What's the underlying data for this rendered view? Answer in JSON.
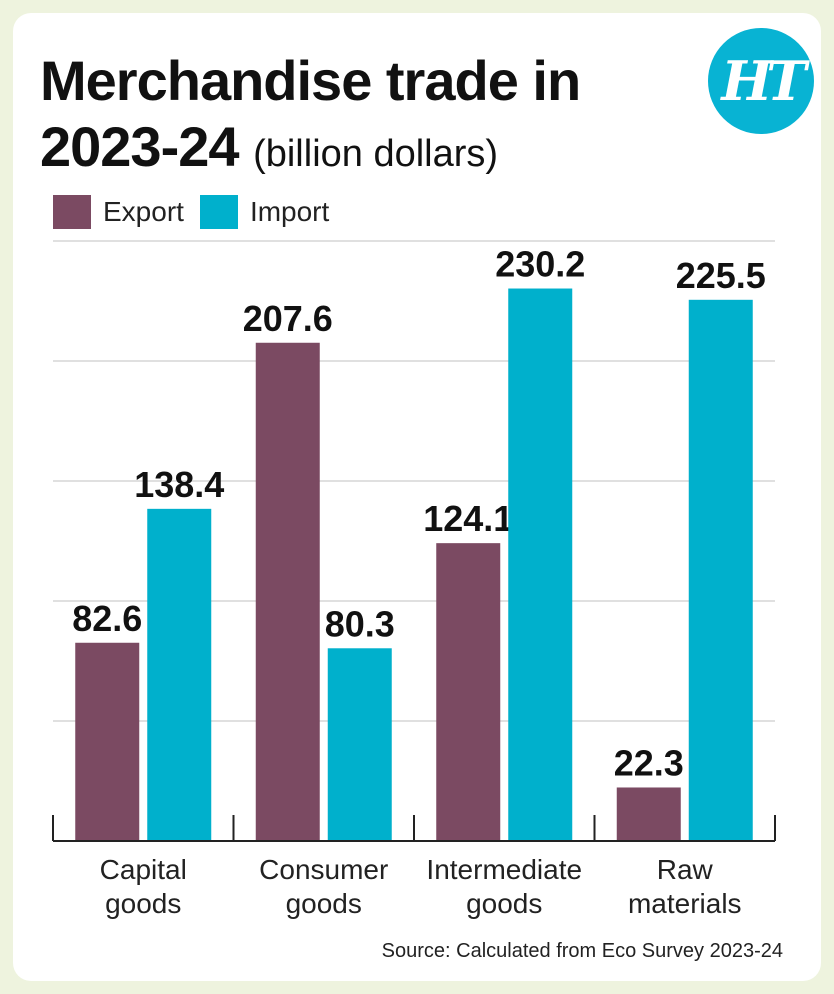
{
  "header": {
    "title_line1": "Merchandise trade in",
    "title_line2": "2023-24",
    "title_unit": "(billion dollars)",
    "logo_text": "HT"
  },
  "legend": [
    {
      "label": "Export",
      "color": "#7b4a62"
    },
    {
      "label": "Import",
      "color": "#00b0cc"
    }
  ],
  "chart_data": {
    "type": "bar",
    "title": "Merchandise trade in 2023-24 (billion dollars)",
    "categories": [
      "Capital goods",
      "Consumer goods",
      "Intermediate goods",
      "Raw materials"
    ],
    "category_lines": [
      [
        "Capital",
        "goods"
      ],
      [
        "Consumer",
        "goods"
      ],
      [
        "Intermediate",
        "goods"
      ],
      [
        "Raw",
        "materials"
      ]
    ],
    "series": [
      {
        "name": "Export",
        "color": "#7b4a62",
        "values": [
          82.6,
          207.6,
          124.1,
          22.3
        ]
      },
      {
        "name": "Import",
        "color": "#00b0cc",
        "values": [
          138.4,
          80.3,
          230.2,
          225.5
        ]
      }
    ],
    "ylim": [
      0,
      250
    ],
    "grid": true,
    "legend_position": "top-left",
    "data_labels": true
  },
  "source": "Source: Calculated from Eco Survey 2023-24"
}
